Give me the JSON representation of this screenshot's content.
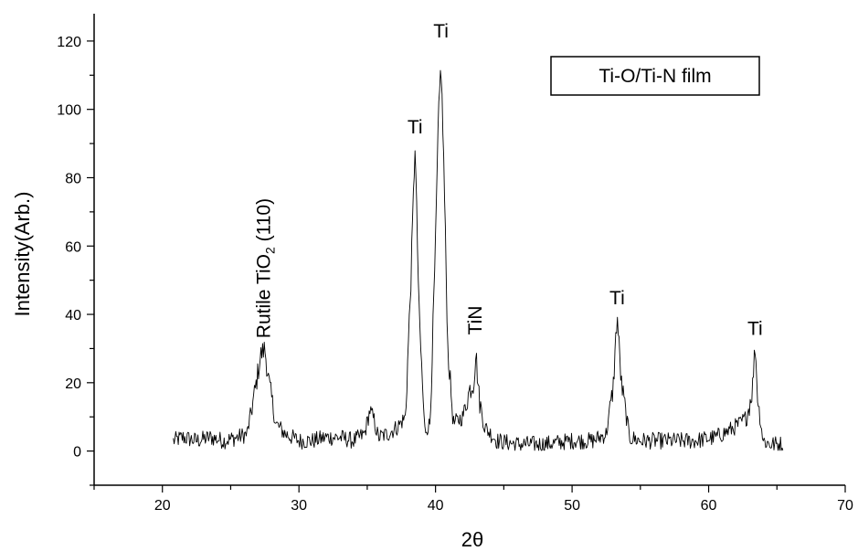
{
  "chart_data": {
    "type": "line",
    "xlabel": "2θ",
    "ylabel": "Intensity(Arb.)",
    "xlim": [
      15,
      70
    ],
    "ylim": [
      -10,
      128
    ],
    "x_ticks": [
      20,
      30,
      40,
      50,
      60,
      70
    ],
    "y_ticks": [
      0,
      20,
      40,
      60,
      80,
      100,
      120
    ],
    "legend_box": "Ti-O/Ti-N film",
    "grid": false,
    "series": [
      {
        "x": [
          20.8,
          21.5,
          22.5,
          23.5,
          24.5,
          25.5,
          26.2,
          26.8,
          27.2,
          27.5,
          27.8,
          28.3,
          29,
          30,
          31,
          32,
          33,
          34,
          34.8,
          35.2,
          35.5,
          35.8,
          36.5,
          37.2,
          37.8,
          38.2,
          38.5,
          38.8,
          39.2,
          39.6,
          40.0,
          40.2,
          40.4,
          40.6,
          40.9,
          41.3,
          42,
          42.5,
          42.8,
          42.95,
          43.2,
          43.6,
          44.5,
          46,
          48,
          50,
          51.5,
          52.5,
          53.0,
          53.3,
          53.6,
          54.2,
          55,
          57,
          59,
          60.5,
          61.5,
          62.3,
          62.8,
          63.2,
          63.4,
          63.6,
          64,
          64.5,
          65.5
        ],
        "y": [
          3,
          4,
          3,
          4,
          3,
          4,
          5,
          18,
          28,
          30,
          20,
          8,
          5,
          3,
          3,
          4,
          4,
          3,
          5,
          12,
          9,
          4,
          5,
          7,
          10,
          50,
          90,
          40,
          6,
          8,
          60,
          95,
          114,
          85,
          30,
          8,
          10,
          18,
          20,
          29,
          15,
          7,
          3,
          2,
          2,
          3,
          3,
          5,
          18,
          40,
          20,
          4,
          3,
          3,
          3,
          4,
          6,
          8,
          10,
          18,
          31,
          15,
          3,
          2,
          2
        ]
      }
    ],
    "annotations": [
      {
        "text": "Rutile TiO",
        "subscript": "2",
        "suffix": " (110)",
        "x": 27.4,
        "y": 33,
        "rotation": -90
      },
      {
        "text": "Ti",
        "x": 38.5,
        "y": 93
      },
      {
        "text": "Ti",
        "x": 40.4,
        "y": 121
      },
      {
        "text": "TiN",
        "x": 42.9,
        "y": 34,
        "rotation": -90
      },
      {
        "text": "Ti",
        "x": 53.3,
        "y": 43
      },
      {
        "text": "Ti",
        "x": 63.4,
        "y": 34
      }
    ]
  }
}
